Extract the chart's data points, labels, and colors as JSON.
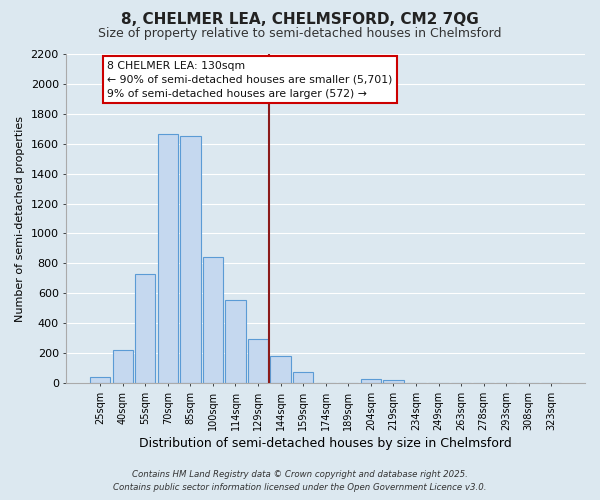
{
  "title": "8, CHELMER LEA, CHELMSFORD, CM2 7QG",
  "subtitle": "Size of property relative to semi-detached houses in Chelmsford",
  "xlabel": "Distribution of semi-detached houses by size in Chelmsford",
  "ylabel": "Number of semi-detached properties",
  "bar_labels": [
    "25sqm",
    "40sqm",
    "55sqm",
    "70sqm",
    "85sqm",
    "100sqm",
    "114sqm",
    "129sqm",
    "144sqm",
    "159sqm",
    "174sqm",
    "189sqm",
    "204sqm",
    "219sqm",
    "234sqm",
    "249sqm",
    "263sqm",
    "278sqm",
    "293sqm",
    "308sqm",
    "323sqm"
  ],
  "bar_values": [
    40,
    220,
    730,
    1665,
    1650,
    840,
    555,
    295,
    180,
    75,
    0,
    0,
    30,
    20,
    0,
    0,
    0,
    0,
    0,
    0,
    0
  ],
  "bar_color": "#c5d8ef",
  "bar_edge_color": "#5b9bd5",
  "vline_color": "#8b1a1a",
  "annotation_title": "8 CHELMER LEA: 130sqm",
  "annotation_line1": "← 90% of semi-detached houses are smaller (5,701)",
  "annotation_line2": "9% of semi-detached houses are larger (572) →",
  "annotation_box_facecolor": "#ffffff",
  "annotation_box_edgecolor": "#cc0000",
  "ylim": [
    0,
    2200
  ],
  "yticks": [
    0,
    200,
    400,
    600,
    800,
    1000,
    1200,
    1400,
    1600,
    1800,
    2000,
    2200
  ],
  "background_color": "#dce8f0",
  "grid_color": "#ffffff",
  "footnote1": "Contains HM Land Registry data © Crown copyright and database right 2025.",
  "footnote2": "Contains public sector information licensed under the Open Government Licence v3.0."
}
